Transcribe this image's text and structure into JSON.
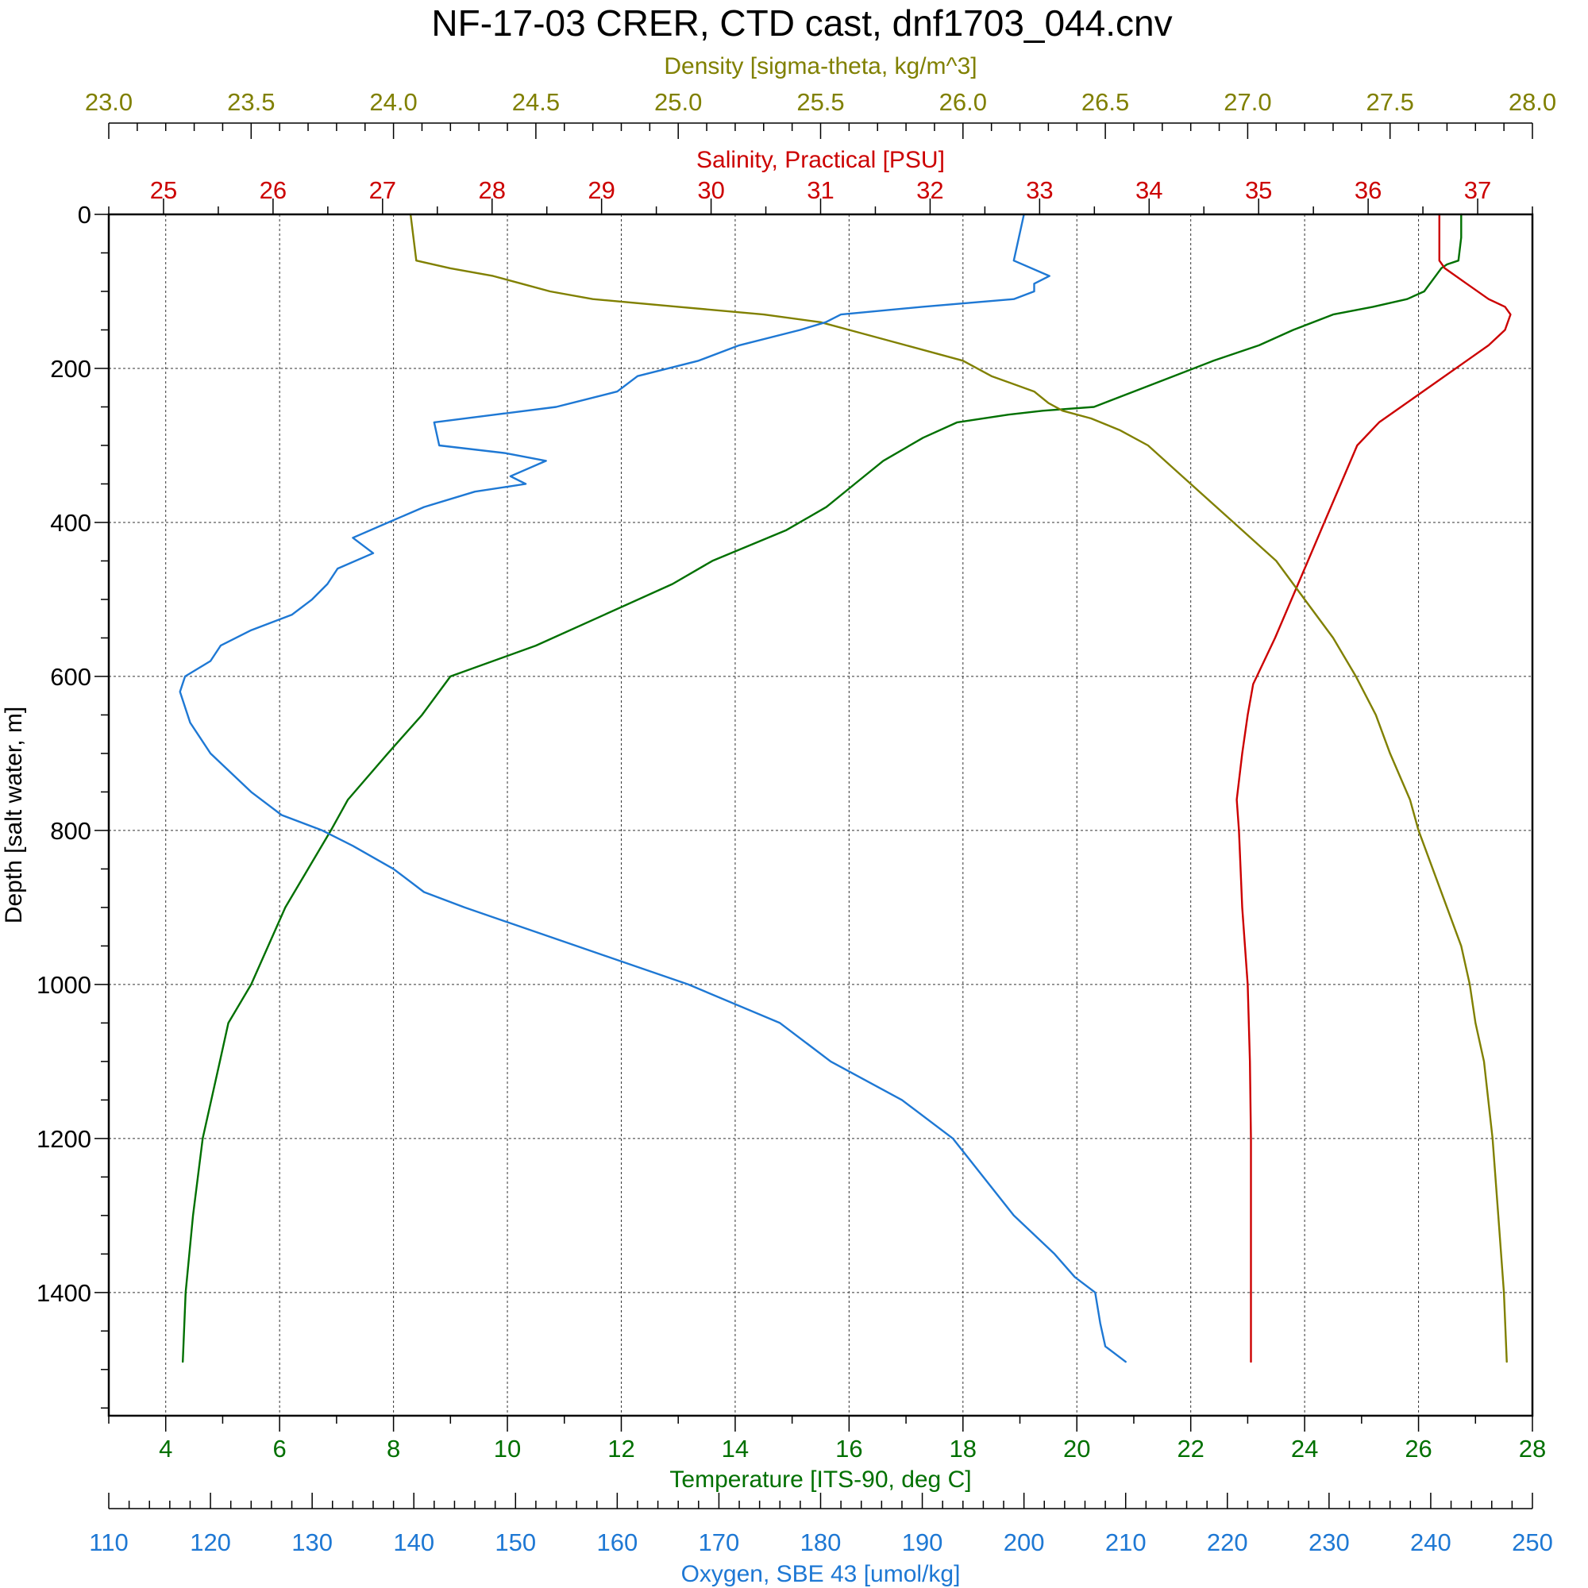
{
  "chart_data": {
    "type": "line",
    "title": "NF-17-03 CRER, CTD cast, dnf1703_044.cnv",
    "grid": true,
    "y_axis": {
      "label": "Depth [salt water, m]",
      "range": [
        0,
        1560
      ],
      "reversed": true,
      "ticks": [
        0,
        200,
        400,
        600,
        800,
        1000,
        1200,
        1400
      ],
      "tick_labels": [
        "0",
        "200",
        "400",
        "600",
        "800",
        "1000",
        "1200",
        "1400"
      ],
      "minor_step": 50
    },
    "x_axes": [
      {
        "id": "density",
        "label": "Density [sigma-theta, kg/m^3]",
        "position": "top-outer",
        "color": "#808000",
        "range": [
          23.0,
          28.0
        ],
        "ticks": [
          23.0,
          23.5,
          24.0,
          24.5,
          25.0,
          25.5,
          26.0,
          26.5,
          27.0,
          27.5,
          28.0
        ],
        "tick_labels": [
          "23.0",
          "23.5",
          "24.0",
          "24.5",
          "25.0",
          "25.5",
          "26.0",
          "26.5",
          "27.0",
          "27.5",
          "28.0"
        ],
        "minor_step": 0.1
      },
      {
        "id": "salinity",
        "label": "Salinity, Practical [PSU]",
        "position": "top-inner",
        "color": "#cc0000",
        "range": [
          24.5,
          37.5
        ],
        "ticks": [
          25,
          26,
          27,
          28,
          29,
          30,
          31,
          32,
          33,
          34,
          35,
          36,
          37
        ],
        "tick_labels": [
          "25",
          "26",
          "27",
          "28",
          "29",
          "30",
          "31",
          "32",
          "33",
          "34",
          "35",
          "36",
          "37"
        ],
        "minor_step": 0.5
      },
      {
        "id": "temperature",
        "label": "Temperature [ITS-90, deg C]",
        "position": "bottom-inner",
        "color": "#007000",
        "range": [
          3,
          28
        ],
        "ticks": [
          4,
          6,
          8,
          10,
          12,
          14,
          16,
          18,
          20,
          22,
          24,
          26,
          28
        ],
        "tick_labels": [
          "4",
          "6",
          "8",
          "10",
          "12",
          "14",
          "16",
          "18",
          "20",
          "22",
          "24",
          "26",
          "28"
        ],
        "minor_step": 1
      },
      {
        "id": "oxygen",
        "label": "Oxygen, SBE 43 [umol/kg]",
        "position": "bottom-outer",
        "color": "#1e78d4",
        "range": [
          110,
          250
        ],
        "ticks": [
          110,
          120,
          130,
          140,
          150,
          160,
          170,
          180,
          190,
          200,
          210,
          220,
          230,
          240,
          250
        ],
        "tick_labels": [
          "110",
          "120",
          "130",
          "140",
          "150",
          "160",
          "170",
          "180",
          "190",
          "200",
          "210",
          "220",
          "230",
          "240",
          "250"
        ],
        "minor_step": 2
      }
    ],
    "series": [
      {
        "axis": "temperature",
        "color": "#007000",
        "depth": [
          0,
          30,
          60,
          65,
          70,
          80,
          100,
          110,
          120,
          130,
          150,
          170,
          190,
          210,
          230,
          250,
          255,
          260,
          270,
          290,
          320,
          350,
          380,
          410,
          450,
          480,
          520,
          560,
          600,
          650,
          700,
          760,
          800,
          850,
          900,
          950,
          1000,
          1050,
          1100,
          1200,
          1300,
          1400,
          1490
        ],
        "values": [
          26.75,
          26.75,
          26.7,
          26.5,
          26.4,
          26.3,
          26.1,
          25.8,
          25.2,
          24.5,
          23.8,
          23.2,
          22.4,
          21.7,
          21.0,
          20.3,
          19.4,
          18.8,
          17.9,
          17.3,
          16.6,
          16.1,
          15.6,
          14.9,
          13.6,
          12.9,
          11.7,
          10.5,
          9.0,
          8.5,
          7.9,
          7.2,
          6.9,
          6.5,
          6.1,
          5.8,
          5.5,
          5.1,
          4.95,
          4.65,
          4.48,
          4.35,
          4.3
        ]
      },
      {
        "axis": "salinity",
        "color": "#cc0000",
        "depth": [
          0,
          60,
          70,
          90,
          110,
          120,
          130,
          150,
          170,
          190,
          220,
          250,
          270,
          300,
          350,
          400,
          450,
          500,
          550,
          580,
          610,
          650,
          700,
          760,
          800,
          900,
          1000,
          1100,
          1200,
          1300,
          1400,
          1490
        ],
        "values": [
          36.65,
          36.65,
          36.7,
          36.9,
          37.1,
          37.25,
          37.3,
          37.25,
          37.1,
          36.9,
          36.6,
          36.3,
          36.1,
          35.9,
          35.75,
          35.6,
          35.45,
          35.3,
          35.15,
          35.05,
          34.95,
          34.9,
          34.85,
          34.8,
          34.82,
          34.85,
          34.9,
          34.92,
          34.93,
          34.93,
          34.93,
          34.93
        ]
      },
      {
        "axis": "density",
        "color": "#808000",
        "depth": [
          0,
          60,
          70,
          80,
          90,
          100,
          110,
          120,
          130,
          140,
          150,
          170,
          190,
          210,
          230,
          245,
          255,
          265,
          280,
          300,
          350,
          400,
          450,
          500,
          550,
          600,
          650,
          700,
          760,
          800,
          850,
          900,
          950,
          1000,
          1050,
          1100,
          1200,
          1300,
          1400,
          1490
        ],
        "values": [
          24.06,
          24.08,
          24.2,
          24.35,
          24.45,
          24.55,
          24.7,
          25.0,
          25.3,
          25.5,
          25.6,
          25.8,
          26.0,
          26.1,
          26.25,
          26.3,
          26.35,
          26.45,
          26.55,
          26.65,
          26.8,
          26.95,
          27.1,
          27.2,
          27.3,
          27.38,
          27.45,
          27.5,
          27.57,
          27.6,
          27.65,
          27.7,
          27.75,
          27.78,
          27.8,
          27.83,
          27.86,
          27.88,
          27.9,
          27.91
        ]
      },
      {
        "axis": "oxygen",
        "color": "#1e78d4",
        "depth": [
          0,
          30,
          60,
          80,
          90,
          100,
          110,
          120,
          130,
          140,
          150,
          170,
          190,
          210,
          230,
          250,
          260,
          270,
          300,
          310,
          320,
          340,
          350,
          360,
          380,
          400,
          420,
          440,
          460,
          480,
          500,
          520,
          540,
          560,
          580,
          600,
          620,
          640,
          660,
          700,
          750,
          780,
          800,
          820,
          850,
          880,
          900,
          950,
          1000,
          1050,
          1100,
          1150,
          1200,
          1250,
          1300,
          1350,
          1380,
          1400,
          1440,
          1470,
          1490
        ],
        "values": [
          200,
          199.5,
          199,
          202.5,
          201,
          201,
          199,
          190,
          182,
          180.5,
          178,
          172,
          168,
          162,
          160,
          154,
          148,
          142,
          142.5,
          149,
          153,
          149.5,
          151,
          146,
          141,
          137.5,
          134,
          136,
          132.5,
          131.5,
          130,
          128,
          124,
          121,
          120,
          117.5,
          117,
          117.5,
          118,
          120,
          124,
          127,
          131,
          134,
          138,
          141,
          145,
          156,
          167,
          176,
          181,
          188,
          193,
          196,
          199,
          203,
          205,
          207,
          207.5,
          208,
          210
        ]
      }
    ]
  }
}
